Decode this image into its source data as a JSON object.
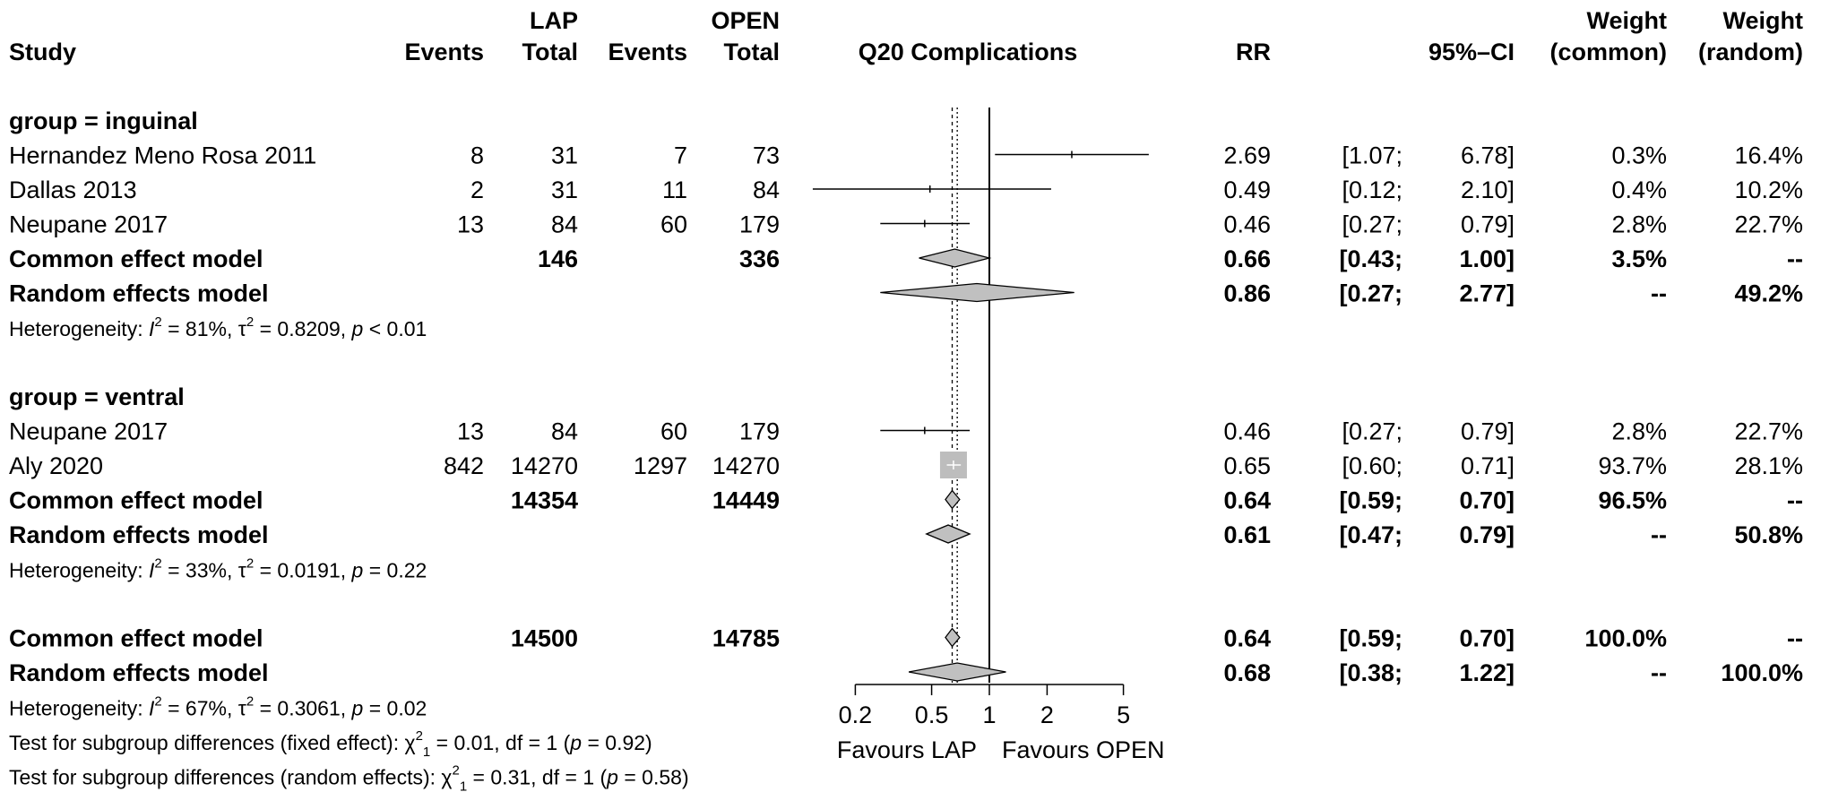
{
  "headers": {
    "study": "Study",
    "lap_group": "LAP",
    "open_group": "OPEN",
    "events": "Events",
    "total": "Total",
    "plot_title": "Q20 Complications",
    "rr": "RR",
    "ci": "95%–CI",
    "weight": "Weight",
    "weight_common": "(common)",
    "weight_random": "(random)"
  },
  "chart_data": {
    "type": "forest",
    "title": "Q20 Complications",
    "x_scale": "log",
    "x_ticks": [
      0.2,
      0.5,
      1,
      2,
      5
    ],
    "x_tick_labels": [
      "0.2",
      "0.5",
      "1",
      "2",
      "5"
    ],
    "null_value": 1,
    "common_effect_line": 0.64,
    "random_effect_line": 0.68,
    "favours_left": "Favours LAP",
    "favours_right": "Favours OPEN",
    "rows": [
      {
        "kind": "group",
        "label": "group = inguinal"
      },
      {
        "kind": "study",
        "label": "Hernandez Meno Rosa 2011",
        "e1": "8",
        "n1": "31",
        "e2": "7",
        "n2": "73",
        "rr": 2.69,
        "lo": 1.07,
        "hi": 6.78,
        "rr_text": "2.69",
        "lo_text": "[1.07;",
        "hi_text": "6.78]",
        "wc": "0.3%",
        "wr": "16.4%"
      },
      {
        "kind": "study",
        "label": "Dallas 2013",
        "e1": "2",
        "n1": "31",
        "e2": "11",
        "n2": "84",
        "rr": 0.49,
        "lo": 0.12,
        "hi": 2.1,
        "rr_text": "0.49",
        "lo_text": "[0.12;",
        "hi_text": "2.10]",
        "wc": "0.4%",
        "wr": "10.2%"
      },
      {
        "kind": "study",
        "label": "Neupane 2017",
        "e1": "13",
        "n1": "84",
        "e2": "60",
        "n2": "179",
        "rr": 0.46,
        "lo": 0.27,
        "hi": 0.79,
        "rr_text": "0.46",
        "lo_text": "[0.27;",
        "hi_text": "0.79]",
        "wc": "2.8%",
        "wr": "22.7%"
      },
      {
        "kind": "pooled",
        "label": "Common effect model",
        "n1": "146",
        "n2": "336",
        "rr": 0.66,
        "lo": 0.43,
        "hi": 1.0,
        "rr_text": "0.66",
        "lo_text": "[0.43;",
        "hi_text": "1.00]",
        "wc": "3.5%",
        "wr": "--"
      },
      {
        "kind": "pooled",
        "label": "Random effects model",
        "rr": 0.86,
        "lo": 0.27,
        "hi": 2.77,
        "rr_text": "0.86",
        "lo_text": "[0.27;",
        "hi_text": "2.77]",
        "wc": "--",
        "wr": "49.2%"
      },
      {
        "kind": "het",
        "pre": "Heterogeneity: ",
        "i2": "I",
        "post": " = 81%, τ",
        "post2": " = 0.8209, ",
        "p": "p",
        "pval": " < 0.01"
      },
      {
        "kind": "blank"
      },
      {
        "kind": "group",
        "label": "group = ventral"
      },
      {
        "kind": "study",
        "label": "Neupane 2017",
        "e1": "13",
        "n1": "84",
        "e2": "60",
        "n2": "179",
        "rr": 0.46,
        "lo": 0.27,
        "hi": 0.79,
        "rr_text": "0.46",
        "lo_text": "[0.27;",
        "hi_text": "0.79]",
        "wc": "2.8%",
        "wr": "22.7%"
      },
      {
        "kind": "study",
        "label": "Aly 2020",
        "e1": "842",
        "n1": "14270",
        "e2": "1297",
        "n2": "14270",
        "rr": 0.65,
        "lo": 0.6,
        "hi": 0.71,
        "rr_text": "0.65",
        "lo_text": "[0.60;",
        "hi_text": "0.71]",
        "wc": "93.7%",
        "wr": "28.1%",
        "big_box": true
      },
      {
        "kind": "pooled",
        "label": "Common effect model",
        "n1": "14354",
        "n2": "14449",
        "rr": 0.64,
        "lo": 0.59,
        "hi": 0.7,
        "rr_text": "0.64",
        "lo_text": "[0.59;",
        "hi_text": "0.70]",
        "wc": "96.5%",
        "wr": "--"
      },
      {
        "kind": "pooled",
        "label": "Random effects model",
        "rr": 0.61,
        "lo": 0.47,
        "hi": 0.79,
        "rr_text": "0.61",
        "lo_text": "[0.47;",
        "hi_text": "0.79]",
        "wc": "--",
        "wr": "50.8%"
      },
      {
        "kind": "het",
        "pre": "Heterogeneity: ",
        "i2": "I",
        "post": " = 33%, τ",
        "post2": " = 0.0191, ",
        "p": "p",
        "pval": " = 0.22"
      },
      {
        "kind": "blank"
      },
      {
        "kind": "pooled",
        "label": "Common effect model",
        "n1": "14500",
        "n2": "14785",
        "rr": 0.64,
        "lo": 0.59,
        "hi": 0.7,
        "rr_text": "0.64",
        "lo_text": "[0.59;",
        "hi_text": "0.70]",
        "wc": "100.0%",
        "wr": "--"
      },
      {
        "kind": "pooled",
        "label": "Random effects model",
        "rr": 0.68,
        "lo": 0.38,
        "hi": 1.22,
        "rr_text": "0.68",
        "lo_text": "[0.38;",
        "hi_text": "1.22]",
        "wc": "--",
        "wr": "100.0%"
      },
      {
        "kind": "het",
        "pre": "Heterogeneity: ",
        "i2": "I",
        "post": " = 67%, τ",
        "post2": " = 0.3061, ",
        "p": "p",
        "pval": " = 0.02"
      },
      {
        "kind": "test",
        "pre": "Test for subgroup differences (fixed effect): ",
        "chi": "χ",
        "post": " = 0.01, df = 1 (",
        "p": "p",
        "pval": " = 0.92)"
      },
      {
        "kind": "test",
        "pre": "Test for subgroup differences (random effects): ",
        "chi": "χ",
        "post": " = 0.31, df = 1 (",
        "p": "p",
        "pval": " = 0.58)"
      }
    ]
  }
}
